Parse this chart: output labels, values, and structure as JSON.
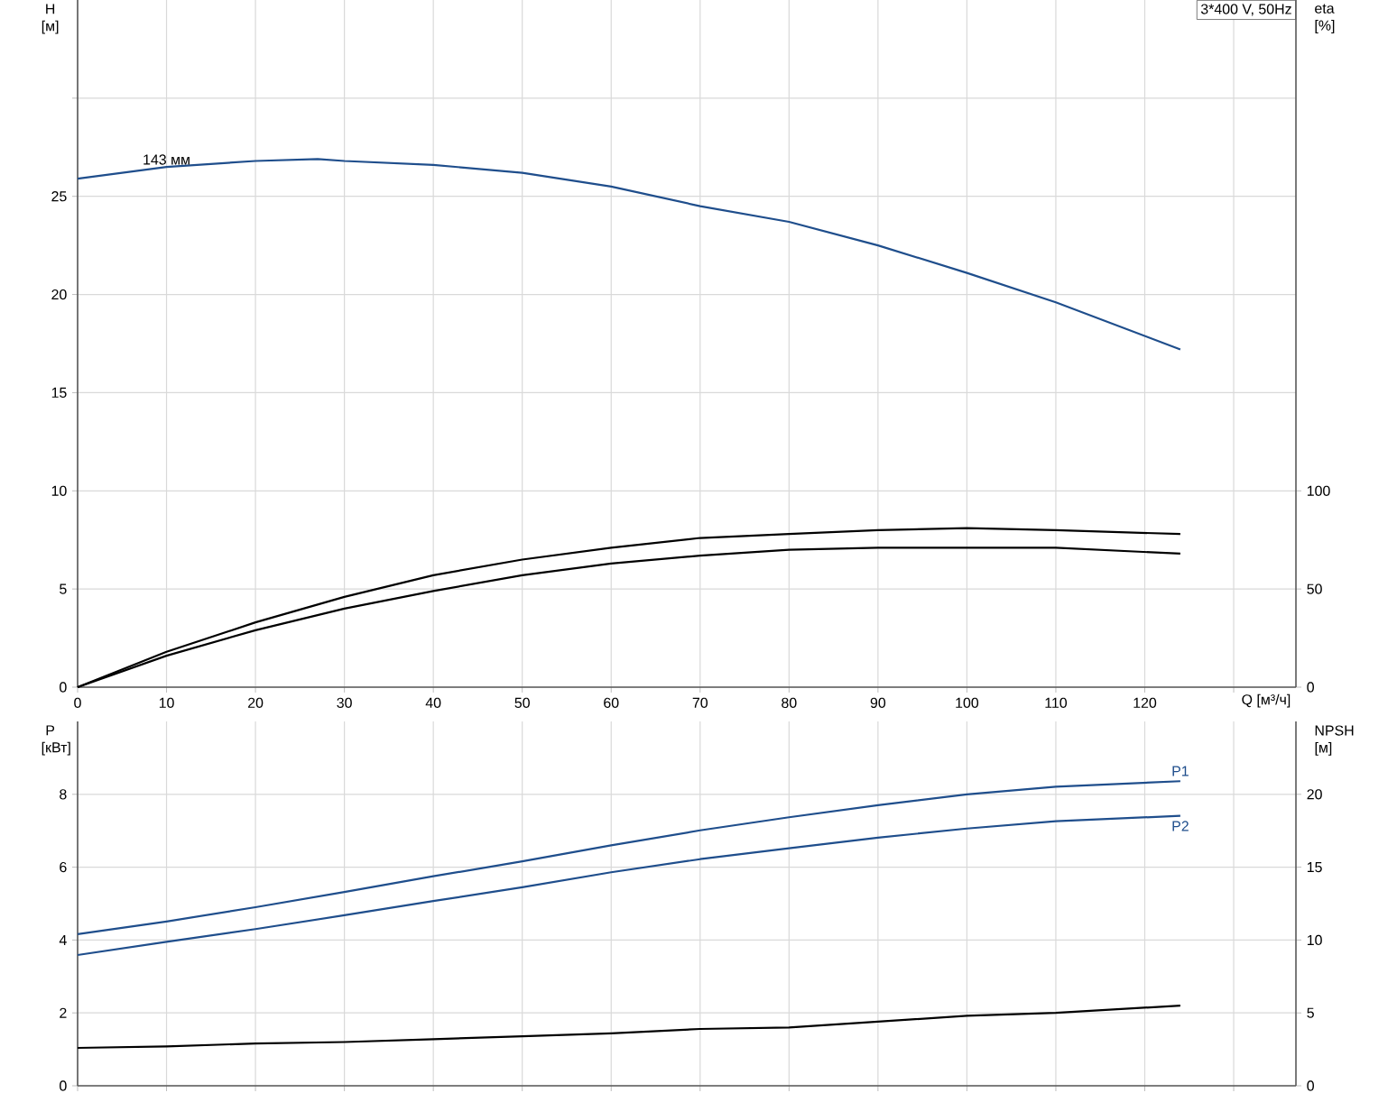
{
  "chart_data": [
    {
      "type": "line",
      "xlabel": "Q [м³/ч]",
      "ylabel": "H [м]",
      "y2label": "eta [%]",
      "annotations": [
        {
          "text": "143 мм",
          "x": 10,
          "y": 26.5
        },
        "3*400 V, 50Hz"
      ],
      "xlim": [
        0,
        137
      ],
      "xticks": [
        0,
        10,
        20,
        30,
        40,
        50,
        60,
        70,
        80,
        90,
        100,
        110,
        120,
        {
          "value": 130,
          "label": null
        }
      ],
      "ylim": [
        0,
        35
      ],
      "yticks": [
        0,
        5,
        10,
        15,
        20,
        25,
        {
          "value": 30,
          "label": null
        }
      ],
      "y2lim": [
        0,
        350
      ],
      "y2ticks": [
        0,
        50,
        100
      ],
      "grid": true,
      "legend": false,
      "series": [
        {
          "color": "#1f4e8c",
          "axis": "y",
          "x": [
            0,
            10,
            20,
            27,
            30,
            40,
            50,
            60,
            70,
            80,
            90,
            100,
            110,
            124
          ],
          "values": [
            25.9,
            26.5,
            26.8,
            26.9,
            26.8,
            26.6,
            26.2,
            25.5,
            24.5,
            23.7,
            22.5,
            21.1,
            19.6,
            17.2
          ]
        },
        {
          "color": "#000000",
          "axis": "y2",
          "x": [
            0,
            10,
            20,
            30,
            40,
            50,
            60,
            70,
            80,
            90,
            100,
            110,
            124
          ],
          "values": [
            0,
            18,
            33,
            46,
            57,
            65,
            71,
            76,
            78,
            80,
            81,
            80,
            78
          ]
        },
        {
          "color": "#000000",
          "axis": "y2",
          "x": [
            0,
            10,
            20,
            30,
            40,
            50,
            60,
            70,
            80,
            90,
            100,
            110,
            124
          ],
          "values": [
            0,
            16,
            29,
            40,
            49,
            57,
            63,
            67,
            70,
            71,
            71,
            71,
            68
          ]
        }
      ]
    },
    {
      "type": "line",
      "ylabel": "P [кВт]",
      "y2label": "NPSH [м]",
      "xlim": [
        0,
        137
      ],
      "xticks": [
        0,
        10,
        20,
        30,
        40,
        50,
        60,
        70,
        80,
        90,
        100,
        110,
        120,
        130
      ],
      "ylim": [
        0,
        10
      ],
      "yticks": [
        0,
        2,
        4,
        6,
        8
      ],
      "y2lim": [
        0,
        25
      ],
      "y2ticks": [
        0,
        5,
        10,
        15,
        20
      ],
      "tick_labels": "y",
      "grid": true,
      "legend": false,
      "series": [
        {
          "name": "P1",
          "color": "#1f4e8c",
          "axis": "y",
          "x": [
            0,
            10,
            20,
            30,
            40,
            50,
            60,
            70,
            80,
            90,
            100,
            110,
            124
          ],
          "values": [
            4.16,
            4.51,
            4.9,
            5.32,
            5.75,
            6.16,
            6.6,
            7.01,
            7.37,
            7.7,
            8.0,
            8.21,
            8.36
          ]
        },
        {
          "name": "P2",
          "color": "#1f4e8c",
          "axis": "y",
          "x": [
            0,
            10,
            20,
            30,
            40,
            50,
            60,
            70,
            80,
            90,
            100,
            110,
            124
          ],
          "values": [
            3.59,
            3.95,
            4.3,
            4.68,
            5.07,
            5.45,
            5.86,
            6.22,
            6.52,
            6.81,
            7.06,
            7.26,
            7.41
          ]
        },
        {
          "color": "#000000",
          "axis": "y2",
          "x": [
            0,
            10,
            20,
            30,
            40,
            50,
            60,
            70,
            80,
            90,
            100,
            110,
            124
          ],
          "values": [
            2.6,
            2.7,
            2.9,
            3.0,
            3.2,
            3.4,
            3.6,
            3.9,
            4.0,
            4.4,
            4.8,
            5.0,
            5.5
          ]
        }
      ]
    }
  ]
}
